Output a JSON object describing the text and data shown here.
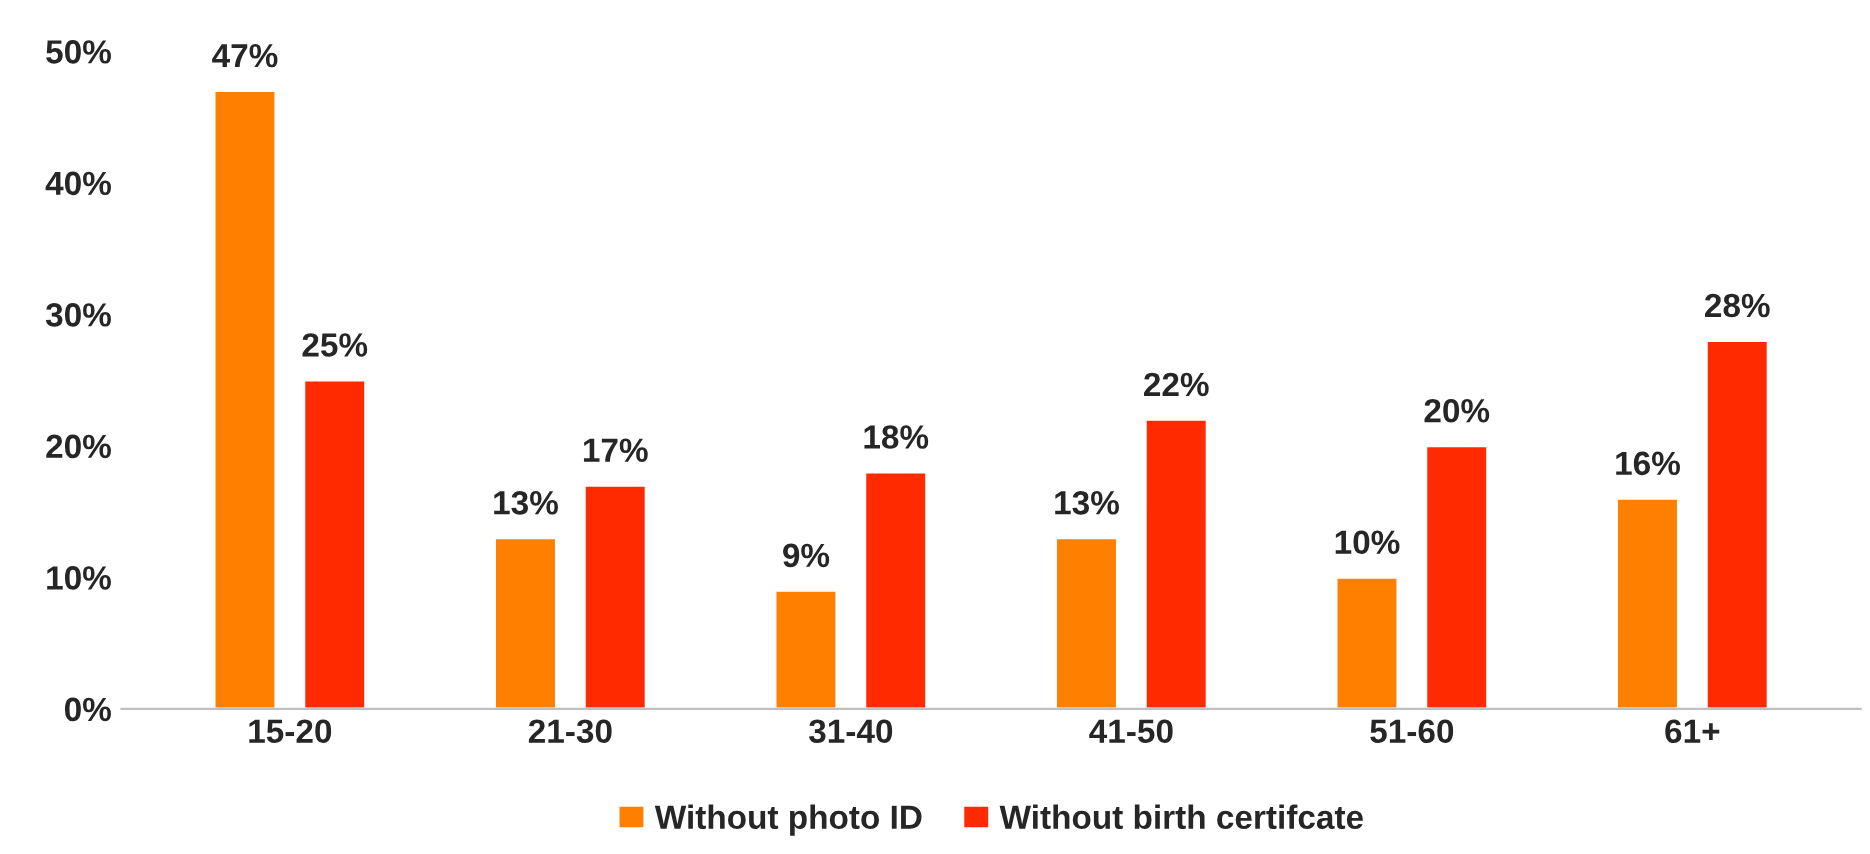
{
  "chart_data": {
    "type": "bar",
    "categories": [
      "15-20",
      "21-30",
      "31-40",
      "41-50",
      "51-60",
      "61+"
    ],
    "series": [
      {
        "name": "Without photo ID",
        "color": "#ff8000",
        "values": [
          47,
          13,
          9,
          13,
          10,
          16
        ],
        "value_labels": [
          "47%",
          "13%",
          "9%",
          "13%",
          "10%",
          "16%"
        ]
      },
      {
        "name": "Without birth certifcate",
        "color": "#ff2a00",
        "values": [
          25,
          17,
          18,
          22,
          20,
          28
        ],
        "value_labels": [
          "25%",
          "17%",
          "18%",
          "22%",
          "20%",
          "28%"
        ]
      }
    ],
    "ylim": [
      0,
      50
    ],
    "yticks": [
      {
        "value": 0,
        "label": "0%"
      },
      {
        "value": 10,
        "label": "10%"
      },
      {
        "value": 20,
        "label": "20%"
      },
      {
        "value": 30,
        "label": "30%"
      },
      {
        "value": 40,
        "label": "40%"
      },
      {
        "value": 50,
        "label": "50%"
      }
    ],
    "grid": false,
    "legend": "bottom"
  }
}
